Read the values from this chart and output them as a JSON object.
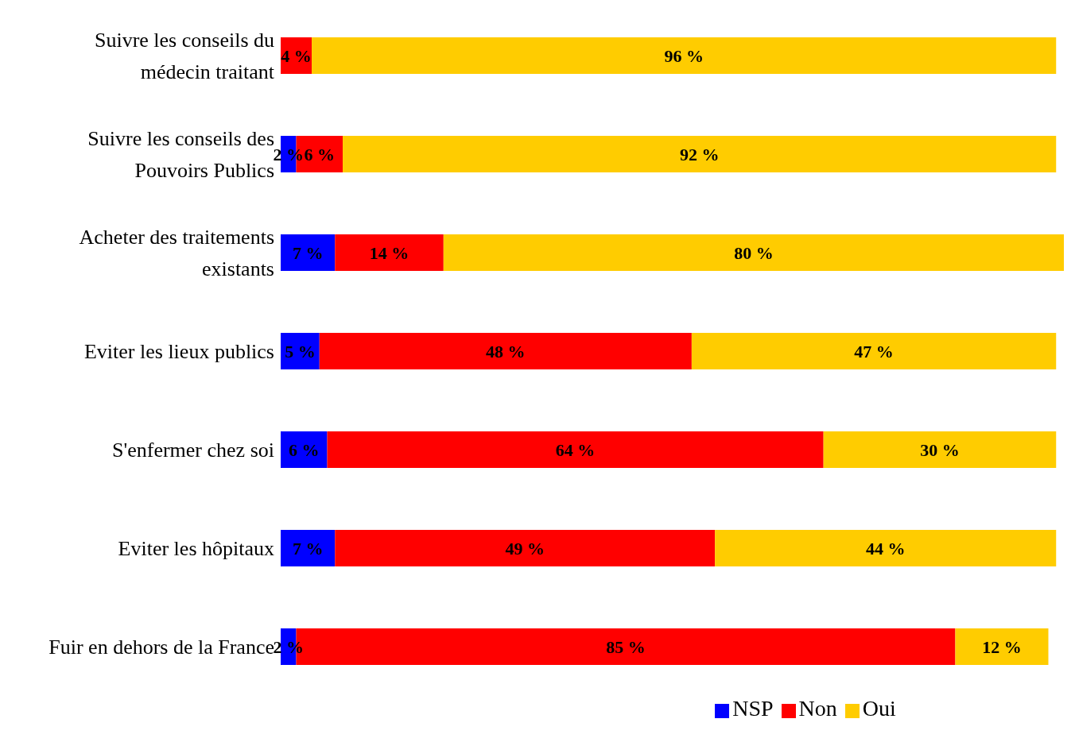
{
  "chart_data": {
    "type": "bar",
    "orientation": "horizontal",
    "stacked": true,
    "categories": [
      "Suivre les conseils du médecin traitant",
      "Suivre les conseils des Pouvoirs Publics",
      "Acheter des traitements existants",
      "Eviter les lieux publics",
      "S'enfermer chez soi",
      "Eviter les hôpitaux",
      "Fuir en dehors de la France"
    ],
    "series": [
      {
        "name": "NSP",
        "color": "#0000ff",
        "values": [
          null,
          2,
          7,
          5,
          6,
          7,
          2
        ],
        "value_labels": [
          null,
          "2 %",
          "7 %",
          "5 %",
          "6 %",
          "7 %",
          "2 %"
        ]
      },
      {
        "name": "Non",
        "color": "#ff0000",
        "values": [
          4,
          6,
          14,
          48,
          64,
          49,
          85
        ],
        "value_labels": [
          "4 %",
          "6 %",
          "14 %",
          "48 %",
          "64 %",
          "49 %",
          "85 %"
        ]
      },
      {
        "name": "Oui",
        "color": "#ffcc00",
        "values": [
          96,
          92,
          80,
          47,
          30,
          44,
          12
        ],
        "value_labels": [
          "96 %",
          "92 %",
          "80 %",
          "47 %",
          "30 %",
          "44 %",
          "12 %"
        ]
      }
    ],
    "xlim": [
      0,
      101
    ],
    "tick_labels": "y",
    "grid": false,
    "legend": "bottom"
  }
}
